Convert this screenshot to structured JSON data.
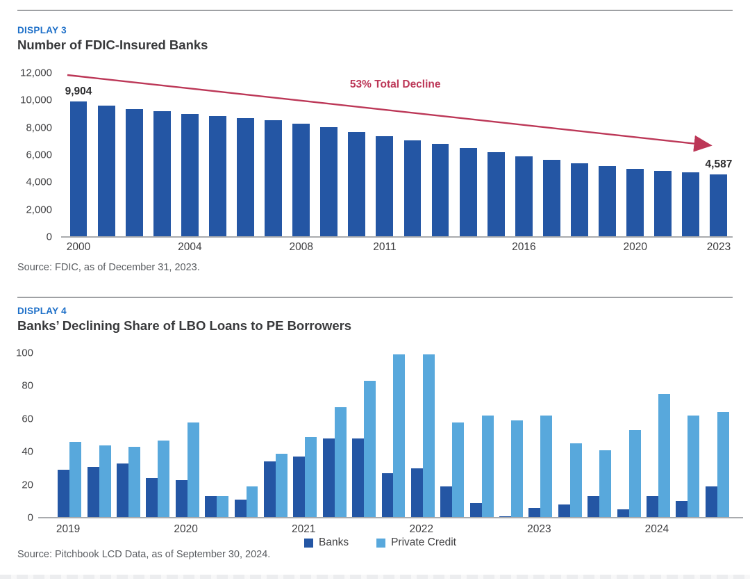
{
  "page": {
    "display3_label": "DISPLAY 3",
    "chart1_title": "Number of FDIC-Insured Banks",
    "source1": "Source: FDIC, as of December 31, 2023.",
    "display4_label": "DISPLAY 4",
    "chart2_title": "Banks’ Declining Share of LBO Loans to PE Borrowers",
    "source2": "Source: Pitchbook LCD Data, as of September 30, 2024."
  },
  "colors": {
    "accent_blue": "#1d6fc8",
    "bank_bar": "#2456a4",
    "private_credit_bar": "#58a8dc",
    "annotation_red": "#bc3757",
    "axis_text": "#3e3e40",
    "rule_gray": "#9fa1a4"
  },
  "chart_data": [
    {
      "type": "bar",
      "title": "Number of FDIC-Insured Banks",
      "categories": [
        2000,
        2001,
        2002,
        2003,
        2004,
        2005,
        2006,
        2007,
        2008,
        2009,
        2010,
        2011,
        2012,
        2013,
        2014,
        2015,
        2016,
        2017,
        2018,
        2019,
        2020,
        2021,
        2022,
        2023
      ],
      "values": [
        9904,
        9614,
        9354,
        9181,
        8976,
        8833,
        8681,
        8534,
        8305,
        8012,
        7658,
        7357,
        7083,
        6812,
        6509,
        6182,
        5913,
        5670,
        5406,
        5177,
        5001,
        4839,
        4706,
        4587
      ],
      "bar_color": "#2456a4",
      "ylim": [
        0,
        12000
      ],
      "yticks": [
        {
          "label": "12,000",
          "value": 12000
        },
        {
          "label": "10,000",
          "value": 10000
        },
        {
          "label": "8,000",
          "value": 8000
        },
        {
          "label": "6,000",
          "value": 6000
        },
        {
          "label": "4,000",
          "value": 4000
        },
        {
          "label": "2,000",
          "value": 2000
        },
        {
          "label": "0",
          "value": 0
        }
      ],
      "xticks": [
        {
          "label": "2000",
          "slot": 0
        },
        {
          "label": "2004",
          "slot": 4
        },
        {
          "label": "2008",
          "slot": 8
        },
        {
          "label": "2011",
          "slot": 11
        },
        {
          "label": "2016",
          "slot": 16
        },
        {
          "label": "2020",
          "slot": 20
        },
        {
          "label": "2023",
          "slot": 23
        }
      ],
      "value_labels": [
        {
          "slot": 0,
          "value": 9904,
          "text": "9,904"
        },
        {
          "slot": 23,
          "value": 4587,
          "text": "4,587"
        }
      ],
      "annotation": {
        "text": "53% Total Decline",
        "color": "#bc3757"
      },
      "grid": false,
      "legend_position": "none"
    },
    {
      "type": "bar",
      "title": "Banks’ Declining Share of LBO Loans to PE Borrowers",
      "categories": [
        "2019 Q1",
        "2019 Q2",
        "2019 Q3",
        "2019 Q4",
        "2020 Q1",
        "2020 Q2",
        "2020 Q3",
        "2020 Q4",
        "2021 Q1",
        "2021 Q2",
        "2021 Q3",
        "2021 Q4",
        "2022 Q1",
        "2022 Q2",
        "2022 Q3",
        "2022 Q4",
        "2023 Q1",
        "2023 Q2",
        "2023 Q3",
        "2023 Q4",
        "2024 Q1",
        "2024 Q2",
        "2024 Q3"
      ],
      "series": [
        {
          "name": "Banks",
          "color": "#2456a4",
          "values": [
            29,
            31,
            33,
            24,
            23,
            13,
            11,
            34,
            37,
            48,
            48,
            27,
            30,
            19,
            9,
            1,
            6,
            8,
            13,
            5,
            13,
            10,
            19
          ]
        },
        {
          "name": "Private Credit",
          "color": "#58a8dc",
          "values": [
            46,
            44,
            43,
            47,
            58,
            13,
            19,
            39,
            49,
            67,
            83,
            99,
            99,
            58,
            62,
            59,
            62,
            45,
            41,
            53,
            75,
            62,
            64
          ]
        }
      ],
      "ylim": [
        0,
        100
      ],
      "yticks": [
        {
          "label": "100",
          "value": 100
        },
        {
          "label": "80",
          "value": 80
        },
        {
          "label": "60",
          "value": 60
        },
        {
          "label": "40",
          "value": 40
        },
        {
          "label": "20",
          "value": 20
        },
        {
          "label": "0",
          "value": 0
        }
      ],
      "xticks": [
        {
          "label": "2019",
          "slot": 0
        },
        {
          "label": "2020",
          "slot": 4
        },
        {
          "label": "2021",
          "slot": 8
        },
        {
          "label": "2022",
          "slot": 12
        },
        {
          "label": "2023",
          "slot": 16
        },
        {
          "label": "2024",
          "slot": 20
        }
      ],
      "grid": false,
      "legend_position": "bottom"
    }
  ]
}
